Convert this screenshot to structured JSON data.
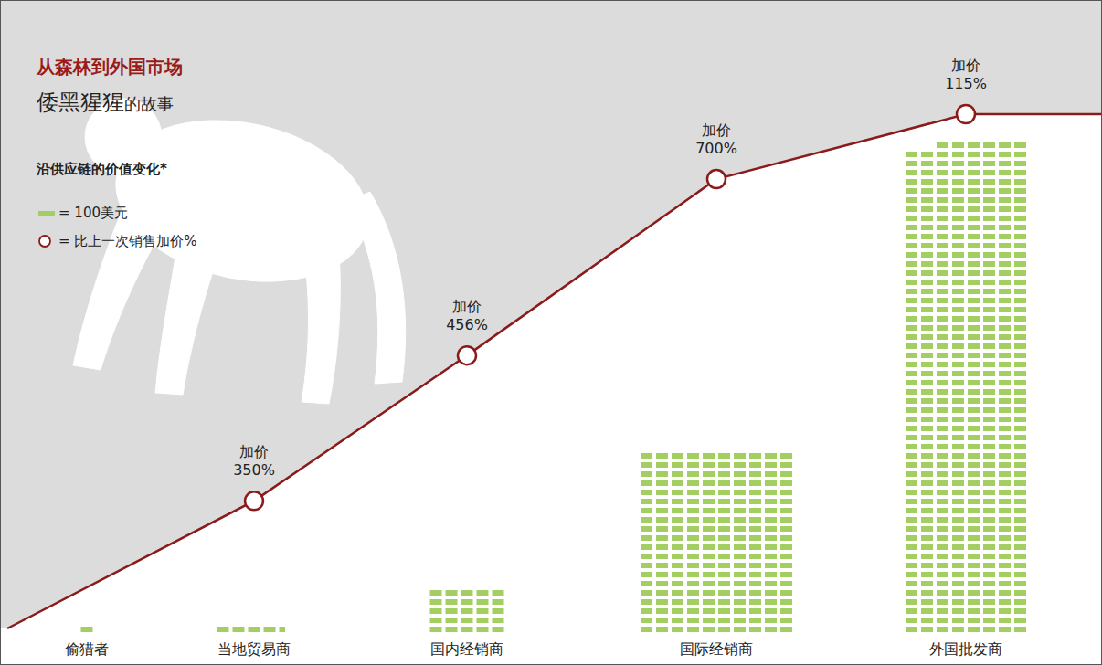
{
  "chart_data": {
    "type": "unit_bar",
    "title": "从森林到外国市场",
    "subtitle": {
      "emphasis": "倭黑猩猩",
      "rest": "的故事"
    },
    "legend_title": "沿供应链的价值变化*",
    "unit": 100,
    "unit_label": "= 100美元",
    "markup_legend_label": "= 比上一次销售加价%",
    "categories": [
      "偷猎者",
      "当地贸易商",
      "国内经销商",
      "国际经销商",
      "外国批发商"
    ],
    "values": [
      100,
      450,
      2500,
      20000,
      43000
    ],
    "markup_word": "加价",
    "markups": [
      null,
      350,
      456,
      700,
      115
    ],
    "markup_labels": [
      null,
      "350%",
      "456%",
      "700%",
      "115%"
    ],
    "color": "#a3cf62",
    "line_color": "#8b1a1a",
    "log": "y",
    "tick_labels": false
  }
}
